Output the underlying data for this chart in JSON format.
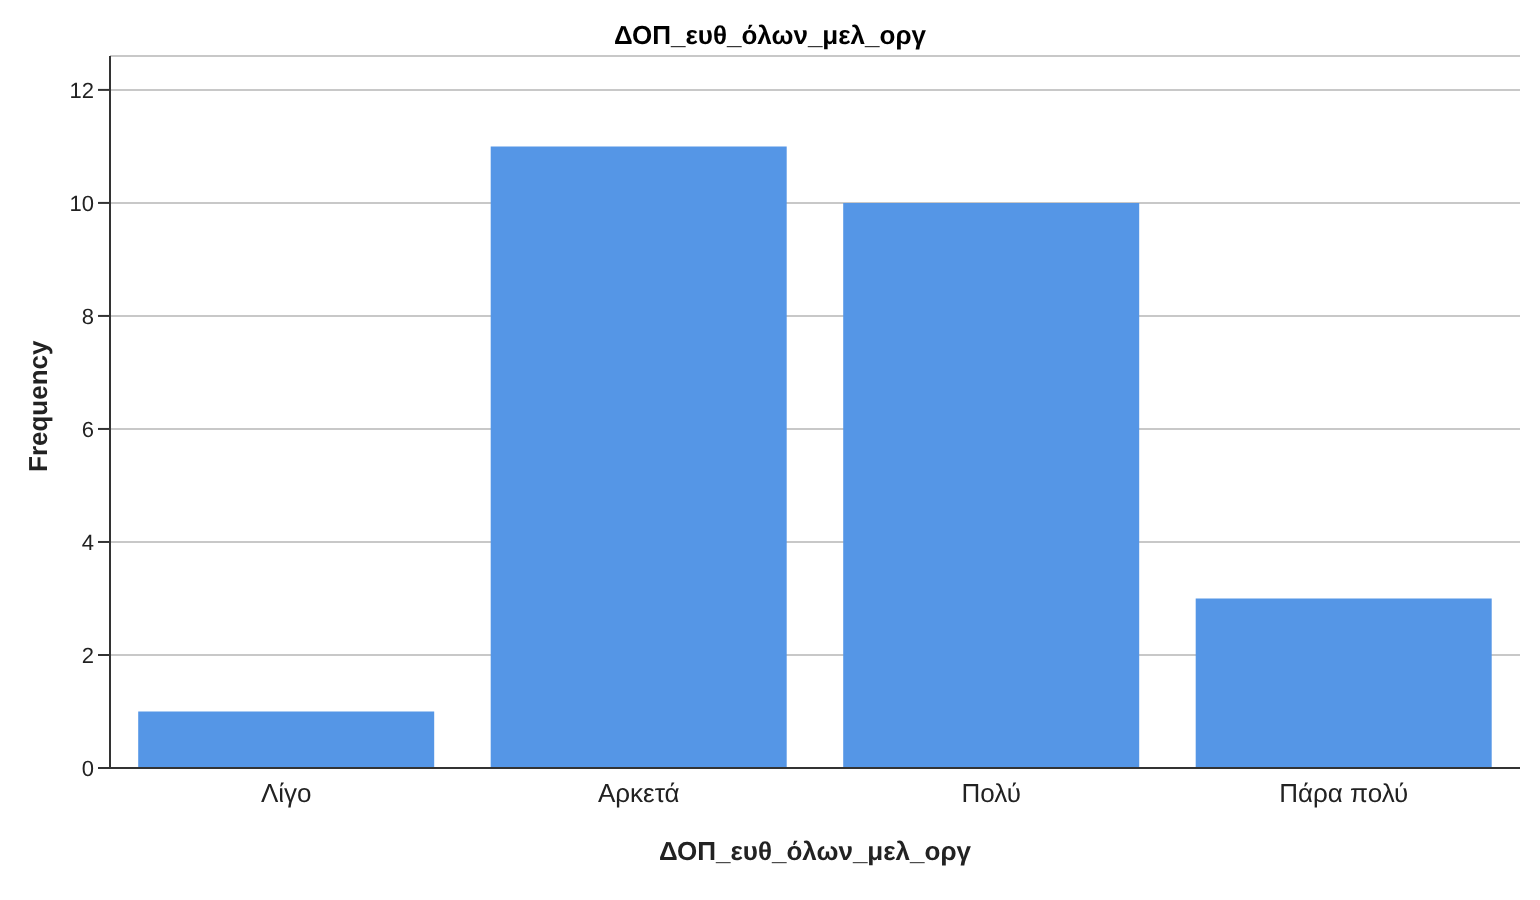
{
  "chart_data": {
    "type": "bar",
    "title": "ΔΟΠ_ευθ_όλων_μελ_οργ",
    "xlabel": "ΔΟΠ_ευθ_όλων_μελ_οργ",
    "ylabel": "Frequency",
    "categories": [
      "Λίγο",
      "Αρκετά",
      "Πολύ",
      "Πάρα πολύ"
    ],
    "values": [
      1,
      11,
      10,
      3
    ],
    "color": "#5596e6",
    "ylim": [
      0,
      12.6
    ],
    "yticks": [
      0,
      2,
      4,
      6,
      8,
      10,
      12
    ],
    "grid": "y"
  }
}
